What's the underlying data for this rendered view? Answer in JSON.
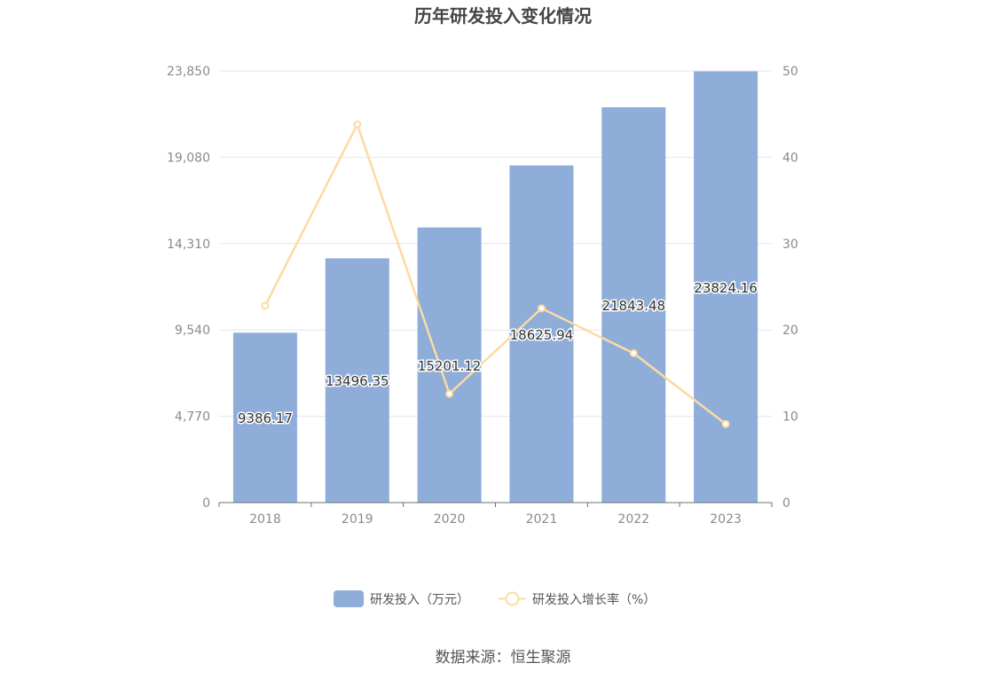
{
  "title": "历年研发投入变化情况",
  "source": "数据来源：恒生聚源",
  "colors": {
    "bar": "#8eadd9",
    "line": "#fcdba0",
    "text": "#464646"
  },
  "chart_data": {
    "type": "bar",
    "categories": [
      "2018",
      "2019",
      "2020",
      "2021",
      "2022",
      "2023"
    ],
    "series": [
      {
        "name": "研发投入（万元）",
        "type": "bar",
        "axis": "left",
        "values": [
          9386.17,
          13496.35,
          15201.12,
          18625.94,
          21843.48,
          23824.16
        ],
        "labels": [
          "9386.17",
          "13496.35",
          "15201.12",
          "18625.94",
          "21843.48",
          "23824.16"
        ]
      },
      {
        "name": "研发投入增长率（%）",
        "type": "line",
        "axis": "right",
        "values": [
          22.8,
          43.8,
          12.6,
          22.5,
          17.3,
          9.1
        ]
      }
    ],
    "y_left": {
      "ticks": [
        0,
        4770,
        9540,
        14310,
        19080,
        23850
      ],
      "tick_labels": [
        "0",
        "4,770",
        "9,540",
        "14,310",
        "19,080",
        "23,850"
      ],
      "range": [
        0,
        23850
      ]
    },
    "y_right": {
      "ticks": [
        0,
        10,
        20,
        30,
        40,
        50
      ],
      "tick_labels": [
        "0",
        "10",
        "20",
        "30",
        "40",
        "50"
      ],
      "range": [
        0,
        50
      ]
    },
    "grid": true,
    "legend_position": "bottom-center"
  }
}
